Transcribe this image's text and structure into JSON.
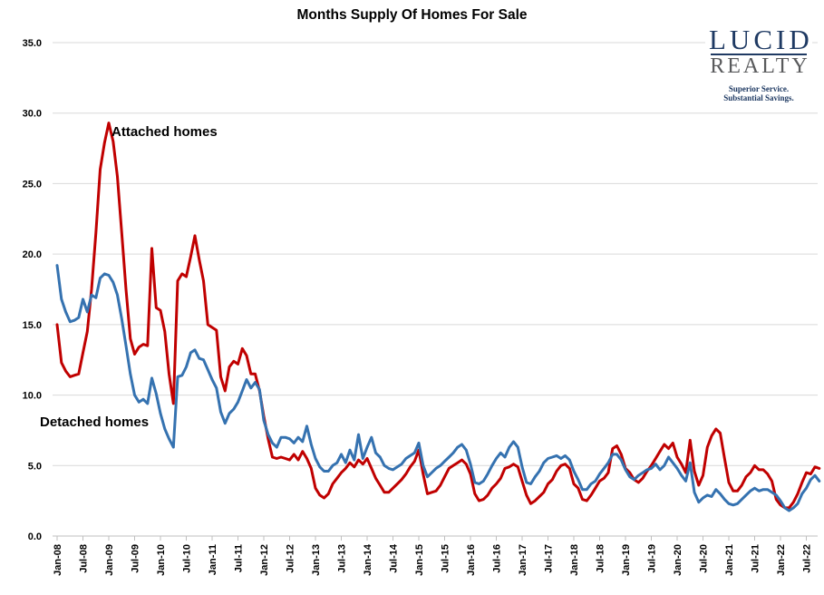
{
  "page": {
    "background": "#FFFFFF"
  },
  "chart_data": {
    "type": "line",
    "title": "Months Supply Of Homes For Sale",
    "grid": "horizontal",
    "legend_position": "none (in-chart series text labels)",
    "colors": {
      "gridline": "#D9D9D9",
      "axis_line": "#BFBFBF",
      "tick_mark": "#BFBFBF"
    },
    "x_axis": {
      "start": "Jan-2008",
      "end": "Oct-2022",
      "frequency": "monthly",
      "tick_labels": [
        "Jan-08",
        "Jul-08",
        "Jan-09",
        "Jul-09",
        "Jan-10",
        "Jul-10",
        "Jan-11",
        "Jul-11",
        "Jan-12",
        "Jul-12",
        "Jan-13",
        "Jul-13",
        "Jan-14",
        "Jul-14",
        "Jan-15",
        "Jul-15",
        "Jan-16",
        "Jul-16",
        "Jan-17",
        "Jul-17",
        "Jan-18",
        "Jul-18",
        "Jan-19",
        "Jul-19",
        "Jan-20",
        "Jul-20",
        "Jan-21",
        "Jul-21",
        "Jan-22",
        "Jul-22"
      ]
    },
    "y_axis": {
      "min": 0,
      "max": 35,
      "tick_labels": [
        "0.0",
        "5.0",
        "10.0",
        "15.0",
        "20.0",
        "25.0",
        "30.0",
        "35.0"
      ]
    },
    "series": [
      {
        "name": "Attached homes",
        "color": "#C00000",
        "values": [
          15.0,
          12.3,
          11.7,
          11.3,
          11.4,
          11.5,
          13.0,
          14.5,
          17.5,
          21.5,
          26.0,
          27.9,
          29.3,
          28.0,
          25.5,
          21.5,
          17.5,
          14.0,
          12.9,
          13.4,
          13.6,
          13.5,
          20.4,
          16.2,
          16.0,
          14.5,
          11.5,
          9.4,
          18.1,
          18.6,
          18.4,
          19.8,
          21.3,
          19.6,
          18.1,
          15.0,
          14.8,
          14.6,
          11.3,
          10.3,
          12.0,
          12.4,
          12.2,
          13.3,
          12.8,
          11.5,
          11.5,
          10.3,
          8.5,
          6.9,
          5.6,
          5.5,
          5.6,
          5.5,
          5.4,
          5.8,
          5.4,
          6.0,
          5.5,
          4.8,
          3.4,
          2.9,
          2.7,
          3.0,
          3.7,
          4.1,
          4.5,
          4.8,
          5.2,
          4.9,
          5.4,
          5.1,
          5.5,
          4.8,
          4.1,
          3.6,
          3.1,
          3.1,
          3.4,
          3.7,
          4.0,
          4.4,
          4.9,
          5.3,
          6.1,
          4.4,
          3.0,
          3.1,
          3.2,
          3.6,
          4.2,
          4.8,
          5.0,
          5.2,
          5.4,
          5.1,
          4.4,
          3.0,
          2.5,
          2.6,
          2.9,
          3.4,
          3.7,
          4.1,
          4.8,
          4.9,
          5.1,
          4.9,
          3.9,
          2.9,
          2.3,
          2.5,
          2.8,
          3.1,
          3.7,
          4.0,
          4.6,
          5.0,
          5.1,
          4.8,
          3.7,
          3.4,
          2.6,
          2.5,
          2.9,
          3.4,
          3.9,
          4.1,
          4.5,
          6.2,
          6.4,
          5.8,
          4.8,
          4.5,
          4.0,
          3.8,
          4.1,
          4.6,
          5.0,
          5.5,
          6.0,
          6.5,
          6.2,
          6.6,
          5.6,
          5.1,
          4.5,
          6.8,
          4.6,
          3.6,
          4.3,
          6.3,
          7.1,
          7.6,
          7.3,
          5.5,
          3.8,
          3.2,
          3.2,
          3.6,
          4.2,
          4.5,
          5.0,
          4.7,
          4.7,
          4.4,
          3.9,
          2.6,
          2.2,
          2.0,
          2.0,
          2.4,
          3.0,
          3.8,
          4.5,
          4.4,
          4.9,
          4.8
        ]
      },
      {
        "name": "Detached homes",
        "color": "#3572B0",
        "values": [
          19.2,
          16.8,
          15.9,
          15.2,
          15.3,
          15.5,
          16.8,
          15.9,
          17.1,
          16.9,
          18.3,
          18.6,
          18.5,
          18.0,
          17.1,
          15.4,
          13.5,
          11.5,
          10.0,
          9.5,
          9.7,
          9.4,
          11.2,
          10.1,
          8.7,
          7.6,
          6.9,
          6.3,
          11.3,
          11.4,
          12.0,
          13.0,
          13.2,
          12.6,
          12.5,
          11.8,
          11.1,
          10.5,
          8.8,
          8.0,
          8.7,
          9.0,
          9.5,
          10.3,
          11.1,
          10.5,
          10.9,
          10.4,
          8.2,
          7.2,
          6.6,
          6.3,
          7.0,
          7.0,
          6.9,
          6.6,
          7.0,
          6.7,
          7.8,
          6.5,
          5.5,
          4.9,
          4.6,
          4.6,
          5.0,
          5.2,
          5.8,
          5.2,
          6.1,
          5.4,
          7.2,
          5.5,
          6.3,
          7.0,
          5.9,
          5.6,
          5.0,
          4.8,
          4.7,
          4.9,
          5.1,
          5.5,
          5.7,
          5.9,
          6.6,
          5.0,
          4.2,
          4.5,
          4.8,
          5.0,
          5.3,
          5.6,
          5.9,
          6.3,
          6.5,
          6.1,
          5.1,
          3.8,
          3.7,
          3.9,
          4.4,
          5.0,
          5.5,
          5.9,
          5.6,
          6.3,
          6.7,
          6.3,
          4.9,
          3.8,
          3.7,
          4.2,
          4.6,
          5.2,
          5.5,
          5.6,
          5.7,
          5.5,
          5.7,
          5.4,
          4.6,
          4.0,
          3.3,
          3.3,
          3.7,
          3.9,
          4.4,
          4.8,
          5.2,
          5.8,
          5.8,
          5.4,
          4.7,
          4.2,
          4.0,
          4.3,
          4.5,
          4.7,
          4.8,
          5.1,
          4.7,
          5.0,
          5.6,
          5.2,
          4.8,
          4.3,
          3.9,
          5.2,
          3.1,
          2.4,
          2.7,
          2.9,
          2.8,
          3.3,
          3.0,
          2.6,
          2.3,
          2.2,
          2.3,
          2.6,
          2.9,
          3.2,
          3.4,
          3.2,
          3.3,
          3.3,
          3.1,
          2.9,
          2.5,
          2.0,
          1.8,
          2.0,
          2.3,
          3.0,
          3.4,
          4.0,
          4.3,
          3.9
        ]
      }
    ],
    "annotations": [
      {
        "text": "Attached homes",
        "series": "Attached homes"
      },
      {
        "text": "Detached homes",
        "series": "Detached homes"
      }
    ]
  },
  "logo": {
    "name_line1": "LUCID",
    "name_line2": "REALTY",
    "tagline_line1": "Superior Service.",
    "tagline_line2": "Substantial Savings.",
    "primary_color": "#1F3A63",
    "secondary_color": "#595A5C"
  }
}
